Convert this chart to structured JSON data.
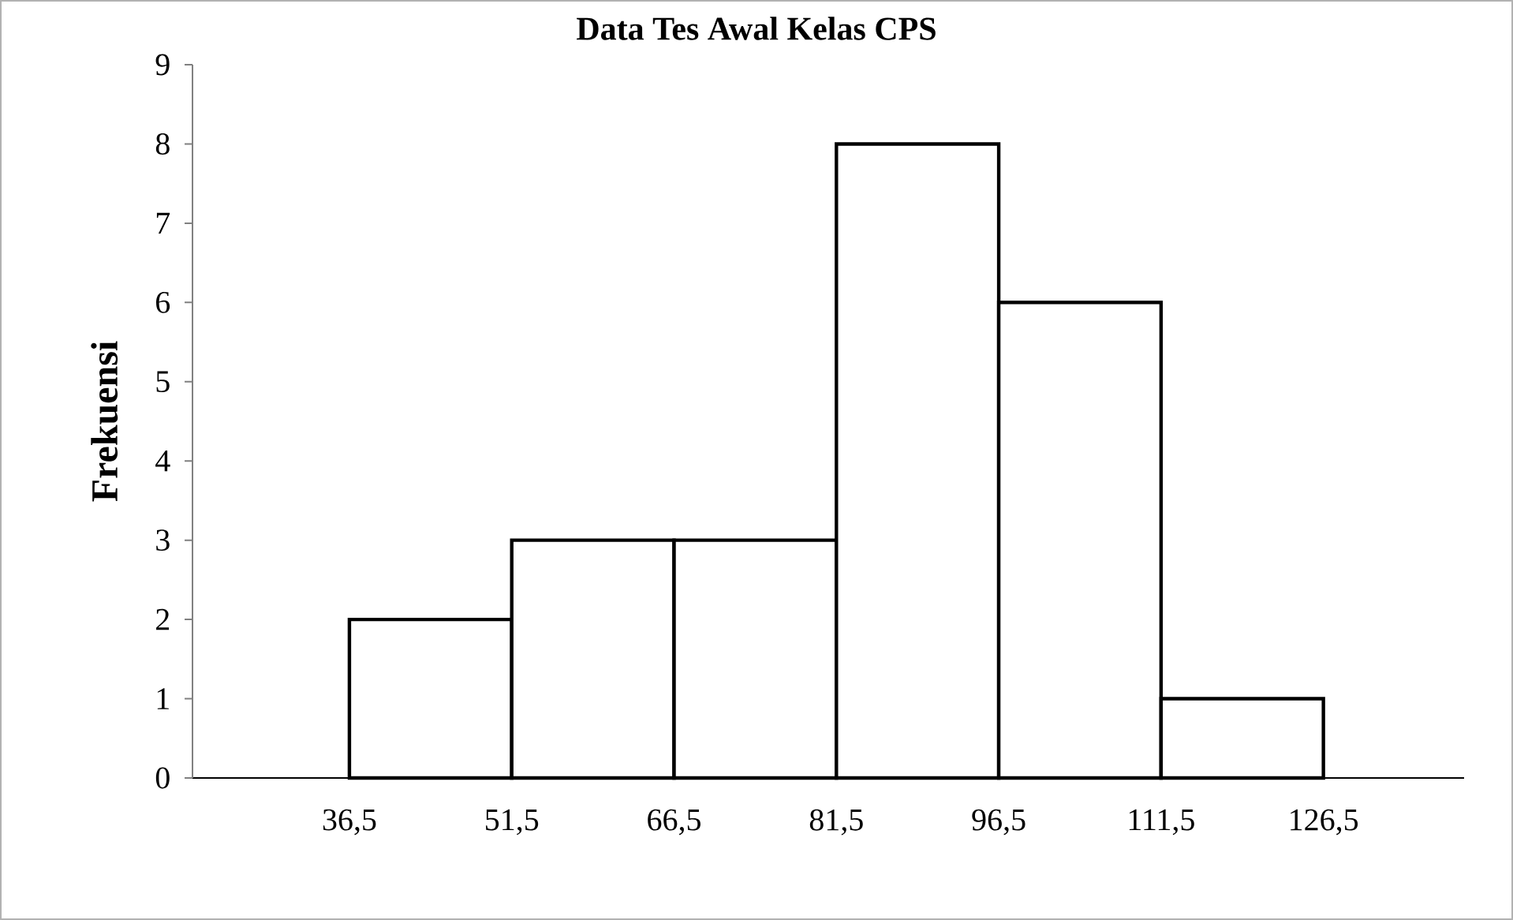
{
  "chart_data": {
    "type": "histogram",
    "title": "Data Tes Awal Kelas CPS",
    "ylabel": "Frekuensi",
    "bins": [
      36.5,
      51.5,
      66.5,
      81.5,
      96.5,
      111.5,
      126.5
    ],
    "values": [
      2,
      3,
      3,
      8,
      6,
      1
    ],
    "color": "#ffffff",
    "xlim": [
      22,
      139.5
    ],
    "xticks": [
      {
        "value": 36.5,
        "label": "36,5"
      },
      {
        "value": 51.5,
        "label": "51,5"
      },
      {
        "value": 66.5,
        "label": "66,5"
      },
      {
        "value": 81.5,
        "label": "81,5"
      },
      {
        "value": 96.5,
        "label": "96,5"
      },
      {
        "value": 111.5,
        "label": "111,5"
      },
      {
        "value": 126.5,
        "label": "126,5"
      }
    ],
    "ylim": [
      0,
      9
    ],
    "yticks": [
      0,
      1,
      2,
      3,
      4,
      5,
      6,
      7,
      8,
      9
    ],
    "grid": false
  }
}
